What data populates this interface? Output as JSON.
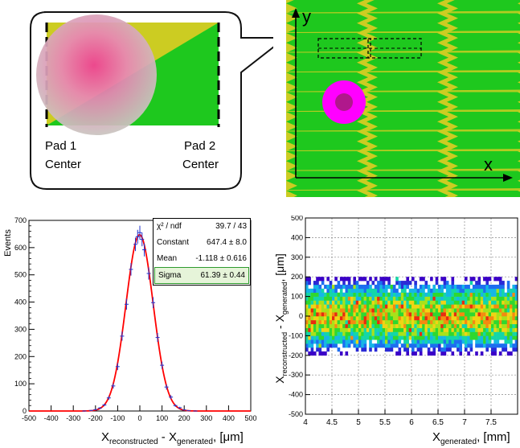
{
  "callout": {
    "pad1_line1": "Pad 1",
    "pad1_line2": "Center",
    "pad2_line1": "Pad 2",
    "pad2_line2": "Center"
  },
  "zigzag": {
    "x_axis_label": "x",
    "y_axis_label": "y"
  },
  "colors": {
    "pad_green": "#1ec81e",
    "pad_yellow": "#cccc22",
    "spot_magenta": "#ff00ff",
    "fit_red": "#ff0000",
    "points_blue": "#2233cc",
    "sigma_highlight": "#e6f4d9"
  },
  "chart_data": [
    {
      "type": "histogram",
      "title": "",
      "ylabel": "Events",
      "xlabel_main": "X",
      "xlabel_sub1": "reconstructed",
      "xlabel_mid": " - X",
      "xlabel_sub2": "generated",
      "xlabel_unit": ", [μm]",
      "xlim": [
        -500,
        500
      ],
      "ylim": [
        0,
        700
      ],
      "x_ticks": [
        "-500",
        "-400",
        "-300",
        "-200",
        "-100",
        "0",
        "100",
        "200",
        "300",
        "400",
        "500"
      ],
      "y_ticks": [
        "0",
        "100",
        "200",
        "300",
        "400",
        "500",
        "600",
        "700"
      ],
      "fit_stats": [
        {
          "key": "χ² / ndf",
          "value": "39.7 / 43"
        },
        {
          "key": "Constant",
          "value": "647.4 ± 8.0"
        },
        {
          "key": "Mean",
          "value": "-1.118 ± 0.616"
        },
        {
          "key": "Sigma",
          "value": "61.39 ± 0.44"
        }
      ],
      "fit": {
        "constant": 647.4,
        "mean": -1.118,
        "sigma": 61.39
      },
      "points": [
        {
          "x": -250,
          "y": 0
        },
        {
          "x": -220,
          "y": 2
        },
        {
          "x": -200,
          "y": 5
        },
        {
          "x": -180,
          "y": 11
        },
        {
          "x": -160,
          "y": 22
        },
        {
          "x": -140,
          "y": 48
        },
        {
          "x": -120,
          "y": 92
        },
        {
          "x": -100,
          "y": 163
        },
        {
          "x": -80,
          "y": 275
        },
        {
          "x": -60,
          "y": 392
        },
        {
          "x": -40,
          "y": 520
        },
        {
          "x": -20,
          "y": 612
        },
        {
          "x": -10,
          "y": 640
        },
        {
          "x": 0,
          "y": 655
        },
        {
          "x": 10,
          "y": 630
        },
        {
          "x": 20,
          "y": 592
        },
        {
          "x": 40,
          "y": 505
        },
        {
          "x": 60,
          "y": 398
        },
        {
          "x": 80,
          "y": 270
        },
        {
          "x": 100,
          "y": 168
        },
        {
          "x": 120,
          "y": 88
        },
        {
          "x": 140,
          "y": 51
        },
        {
          "x": 160,
          "y": 20
        },
        {
          "x": 180,
          "y": 12
        },
        {
          "x": 200,
          "y": 4
        },
        {
          "x": 220,
          "y": 1
        },
        {
          "x": 250,
          "y": 0
        }
      ]
    },
    {
      "type": "heatmap",
      "title": "",
      "xlabel_main": "X",
      "xlabel_sub": "generated",
      "xlabel_unit": ", [mm]",
      "ylabel_main": "X",
      "ylabel_sub1": "reconstructed",
      "ylabel_mid": " - X",
      "ylabel_sub2": "generated",
      "ylabel_unit": ", [μm]",
      "xlim": [
        4,
        8
      ],
      "ylim": [
        -500,
        500
      ],
      "x_ticks": [
        "4",
        "4.5",
        "5",
        "5.5",
        "6",
        "6.5",
        "7",
        "7.5"
      ],
      "y_ticks": [
        "-500",
        "-400",
        "-300",
        "-200",
        "-100",
        "0",
        "100",
        "200",
        "300",
        "400",
        "500"
      ],
      "grid": true,
      "band_center": 0,
      "band_halfwidth": 200,
      "bin_x": 0.05,
      "bin_y": 20
    }
  ]
}
